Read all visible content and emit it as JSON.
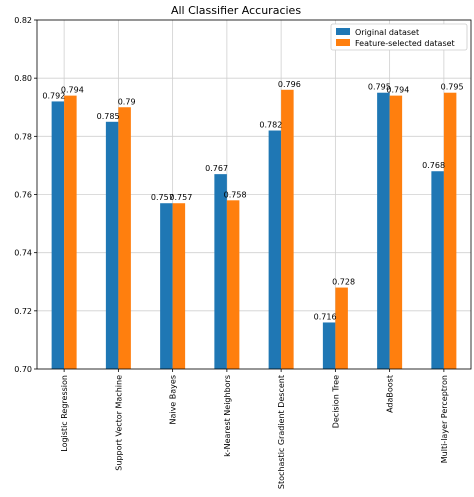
{
  "chart_data": {
    "type": "bar",
    "title": "All Classifier Accuracies",
    "xlabel": "",
    "ylabel": "",
    "ylim": [
      0.7,
      0.82
    ],
    "yticks": [
      "0.70",
      "0.72",
      "0.74",
      "0.76",
      "0.78",
      "0.80",
      "0.82"
    ],
    "grid": true,
    "legend_position": "top-right",
    "categories": [
      "Logistic Regression",
      "Support Vector Machine",
      "Naive Bayes",
      "k-Nearest Neighbors",
      "Stochastic Gradient Descent",
      "Decision Tree",
      "AdaBoost",
      "Multi-layer Perceptron"
    ],
    "series": [
      {
        "name": "Original dataset",
        "color": "#1f77b4",
        "values": [
          0.792,
          0.785,
          0.757,
          0.767,
          0.782,
          0.716,
          0.795,
          0.768
        ],
        "labels": [
          "0.792",
          "0.785",
          "0.757",
          "0.767",
          "0.782",
          "0.716",
          "0.795",
          "0.768"
        ]
      },
      {
        "name": "Feature-selected dataset",
        "color": "#ff7f0e",
        "values": [
          0.794,
          0.79,
          0.757,
          0.758,
          0.796,
          0.728,
          0.794,
          0.795
        ],
        "labels": [
          "0.794",
          "0.79",
          "0.757",
          "0.758",
          "0.796",
          "0.728",
          "0.794",
          "0.795"
        ]
      }
    ]
  }
}
